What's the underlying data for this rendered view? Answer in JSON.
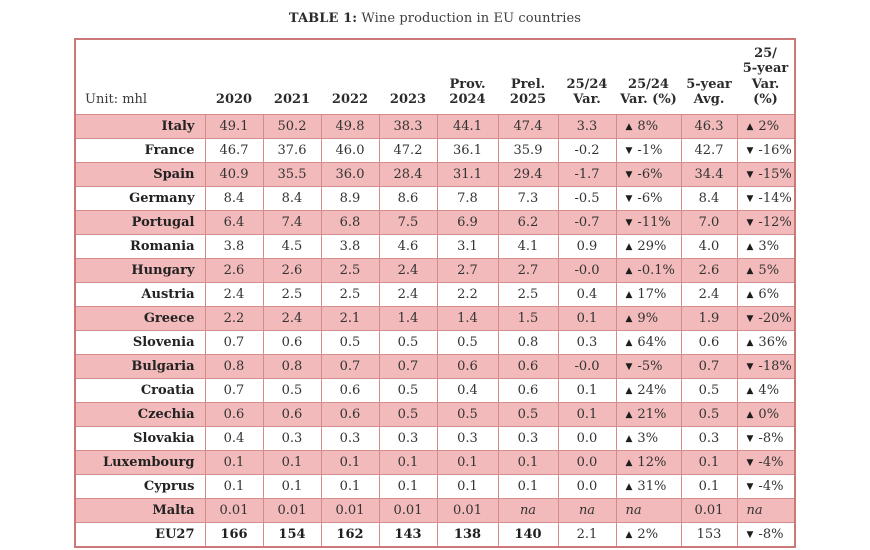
{
  "title": {
    "label": "TABLE 1:",
    "text": " Wine production in EU countries"
  },
  "table": {
    "unit_label": "Unit: mhl",
    "columns": [
      "2020",
      "2021",
      "2022",
      "2023",
      "Prov.\n2024",
      "Prel.\n2025",
      "25/24\nVar.",
      "25/24\nVar. (%)",
      "5-year\nAvg.",
      "25/\n5-year\nVar. (%)"
    ],
    "rows": [
      {
        "country": "Italy",
        "values": [
          "49.1",
          "50.2",
          "49.8",
          "38.3",
          "44.1",
          "47.4",
          "3.3",
          "▲ 8%",
          "46.3",
          "▲ 2%"
        ]
      },
      {
        "country": "France",
        "values": [
          "46.7",
          "37.6",
          "46.0",
          "47.2",
          "36.1",
          "35.9",
          "-0.2",
          "▼ -1%",
          "42.7",
          "▼ -16%"
        ]
      },
      {
        "country": "Spain",
        "values": [
          "40.9",
          "35.5",
          "36.0",
          "28.4",
          "31.1",
          "29.4",
          "-1.7",
          "▼ -6%",
          "34.4",
          "▼ -15%"
        ]
      },
      {
        "country": "Germany",
        "values": [
          "8.4",
          "8.4",
          "8.9",
          "8.6",
          "7.8",
          "7.3",
          "-0.5",
          "▼ -6%",
          "8.4",
          "▼ -14%"
        ]
      },
      {
        "country": "Portugal",
        "values": [
          "6.4",
          "7.4",
          "6.8",
          "7.5",
          "6.9",
          "6.2",
          "-0.7",
          "▼ -11%",
          "7.0",
          "▼ -12%"
        ]
      },
      {
        "country": "Romania",
        "values": [
          "3.8",
          "4.5",
          "3.8",
          "4.6",
          "3.1",
          "4.1",
          "0.9",
          "▲ 29%",
          "4.0",
          "▲ 3%"
        ]
      },
      {
        "country": "Hungary",
        "values": [
          "2.6",
          "2.6",
          "2.5",
          "2.4",
          "2.7",
          "2.7",
          "-0.0",
          "▲ -0.1%",
          "2.6",
          "▲ 5%"
        ]
      },
      {
        "country": "Austria",
        "values": [
          "2.4",
          "2.5",
          "2.5",
          "2.4",
          "2.2",
          "2.5",
          "0.4",
          "▲ 17%",
          "2.4",
          "▲ 6%"
        ]
      },
      {
        "country": "Greece",
        "values": [
          "2.2",
          "2.4",
          "2.1",
          "1.4",
          "1.4",
          "1.5",
          "0.1",
          "▲ 9%",
          "1.9",
          "▼ -20%"
        ]
      },
      {
        "country": "Slovenia",
        "values": [
          "0.7",
          "0.6",
          "0.5",
          "0.5",
          "0.5",
          "0.8",
          "0.3",
          "▲ 64%",
          "0.6",
          "▲ 36%"
        ]
      },
      {
        "country": "Bulgaria",
        "values": [
          "0.8",
          "0.8",
          "0.7",
          "0.7",
          "0.6",
          "0.6",
          "-0.0",
          "▼ -5%",
          "0.7",
          "▼ -18%"
        ]
      },
      {
        "country": "Croatia",
        "values": [
          "0.7",
          "0.5",
          "0.6",
          "0.5",
          "0.4",
          "0.6",
          "0.1",
          "▲ 24%",
          "0.5",
          "▲ 4%"
        ]
      },
      {
        "country": "Czechia",
        "values": [
          "0.6",
          "0.6",
          "0.6",
          "0.5",
          "0.5",
          "0.5",
          "0.1",
          "▲ 21%",
          "0.5",
          "▲ 0%"
        ]
      },
      {
        "country": "Slovakia",
        "values": [
          "0.4",
          "0.3",
          "0.3",
          "0.3",
          "0.3",
          "0.3",
          "0.0",
          "▲ 3%",
          "0.3",
          "▼ -8%"
        ]
      },
      {
        "country": "Luxembourg",
        "values": [
          "0.1",
          "0.1",
          "0.1",
          "0.1",
          "0.1",
          "0.1",
          "0.0",
          "▲ 12%",
          "0.1",
          "▼ -4%"
        ]
      },
      {
        "country": "Cyprus",
        "values": [
          "0.1",
          "0.1",
          "0.1",
          "0.1",
          "0.1",
          "0.1",
          "0.0",
          "▲ 31%",
          "0.1",
          "▼ -4%"
        ]
      },
      {
        "country": "Malta",
        "values": [
          "0.01",
          "0.01",
          "0.01",
          "0.01",
          "0.01",
          "na",
          "na",
          "na",
          "0.01",
          "na"
        ]
      },
      {
        "country": "EU27",
        "values": [
          "166",
          "154",
          "162",
          "143",
          "138",
          "140",
          "2.1",
          "▲ 2%",
          "153",
          "▼ -8%"
        ],
        "bold_first": 6
      }
    ]
  },
  "colors": {
    "row_pink": "#f2baba",
    "grid_line": "#d48b8b",
    "outer_border": "#cd7878",
    "up_arrow": "#1d1d1d",
    "down_arrow": "#1d1d1d"
  },
  "icons": {
    "up": "▲",
    "down": "▼"
  }
}
